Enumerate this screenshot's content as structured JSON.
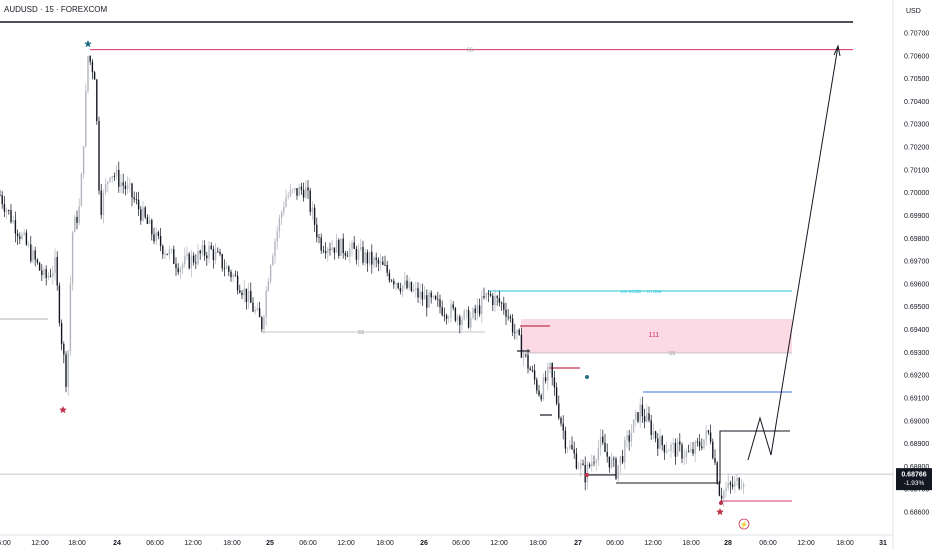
{
  "chart_data": {
    "type": "candlestick",
    "title": "AUDUSD · 15 · FOREXCOM",
    "currency": "USD",
    "x_ticks": [
      "6:00",
      "12:00",
      "18:00",
      "24",
      "06:00",
      "12:00",
      "18:00",
      "25",
      "06:00",
      "12:00",
      "18:00",
      "26",
      "06:00",
      "12:00",
      "18:00",
      "27",
      "06:00",
      "12:00",
      "18:00",
      "28",
      "06:00",
      "12:00",
      "18:00",
      "31"
    ],
    "y_ticks": [
      "0.70700",
      "0.70600",
      "0.70500",
      "0.70400",
      "0.70300",
      "0.70200",
      "0.70100",
      "0.70000",
      "0.69900",
      "0.69800",
      "0.69700",
      "0.69600",
      "0.69500",
      "0.69400",
      "0.69300",
      "0.69200",
      "0.69100",
      "0.69000",
      "0.68900",
      "0.68800",
      "0.68700",
      "0.68600"
    ],
    "ylim": [
      0.6855,
      0.7075
    ],
    "current_price": {
      "value": 0.68766,
      "label": "0.68766",
      "change": "-1.93%"
    },
    "annotations": {
      "ss_top": {
        "label": "SS",
        "price": 0.70627
      },
      "ss_mid": {
        "label": "SS",
        "price": 0.69396
      },
      "ss_zone": {
        "label": "SS",
        "price": 0.6929
      },
      "fvg_line": {
        "label": "1W SCOB + 4H IDM",
        "price": 0.69557
      },
      "zone": {
        "label": "111",
        "top": 0.69448,
        "bottom": 0.6929
      },
      "lightning_badge": "⚡"
    },
    "colors": {
      "up": "#b2b5be",
      "down": "#131722",
      "accent_pink": "#d6336c",
      "accent_cyan": "#26c6da",
      "accent_blue": "#3a6fd8",
      "star_red": "#c0344d",
      "star_teal": "#2a6f8a"
    }
  }
}
